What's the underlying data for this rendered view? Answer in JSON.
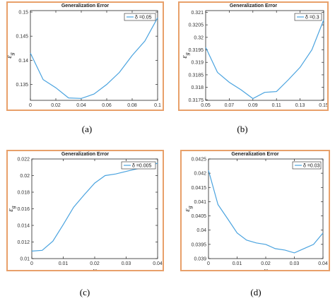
{
  "chart_data": [
    {
      "id": "a",
      "type": "line",
      "title": "Generalization Error",
      "caption": "(a)",
      "xlabel": "γ",
      "ylabel": "ε",
      "ylabel_sub": "g",
      "xlim": [
        0,
        0.1
      ],
      "ylim": [
        0.1317,
        0.1503
      ],
      "xticks": [
        0,
        0.02,
        0.04,
        0.06,
        0.08,
        0.1
      ],
      "xtick_labels": [
        "0",
        "0.02",
        "0.04",
        "0.06",
        "0.08",
        "0.1"
      ],
      "yticks": [
        0.135,
        0.14,
        0.145,
        0.15
      ],
      "ytick_labels": [
        "0.135",
        "0.14",
        "0.145",
        "0.15"
      ],
      "legend": "δ =0.05",
      "legend_position": "top-right",
      "color": "#4aa3df",
      "x": [
        0,
        0.01,
        0.02,
        0.03,
        0.04,
        0.05,
        0.06,
        0.07,
        0.08,
        0.09,
        0.1
      ],
      "y": [
        0.1415,
        0.136,
        0.1343,
        0.1322,
        0.1321,
        0.133,
        0.135,
        0.1375,
        0.141,
        0.144,
        0.1488
      ]
    },
    {
      "id": "b",
      "type": "line",
      "title": "Generalization Error",
      "caption": "(b)",
      "xlabel": "γ",
      "ylabel": "ε",
      "ylabel_sub": "g",
      "xlim": [
        0.05,
        0.15
      ],
      "ylim": [
        0.31748,
        0.32107
      ],
      "xticks": [
        0.05,
        0.07,
        0.09,
        0.11,
        0.13,
        0.15
      ],
      "xtick_labels": [
        "0.05",
        "0.07",
        "0.09",
        "0.11",
        "0.13",
        "0.15"
      ],
      "yticks": [
        0.3175,
        0.318,
        0.3185,
        0.319,
        0.3195,
        0.32,
        0.3205,
        0.321
      ],
      "ytick_labels": [
        "0.3175",
        "0.318",
        "0.3185",
        "0.319",
        "0.3195",
        "0.32",
        "0.3205",
        "0.321"
      ],
      "legend": "δ =0.3",
      "legend_position": "top-right",
      "color": "#4aa3df",
      "x": [
        0.05,
        0.06,
        0.07,
        0.08,
        0.09,
        0.1,
        0.11,
        0.12,
        0.13,
        0.14,
        0.15
      ],
      "y": [
        0.3196,
        0.3186,
        0.3182,
        0.3179,
        0.31755,
        0.3178,
        0.31783,
        0.3183,
        0.3188,
        0.3195,
        0.3207
      ]
    },
    {
      "id": "c",
      "type": "line",
      "title": "Generalization Error",
      "caption": "(c)",
      "xlabel": "γ",
      "ylabel": "ε",
      "ylabel_sub": "g",
      "xlim": [
        0,
        0.04
      ],
      "ylim": [
        0.01,
        0.022
      ],
      "xticks": [
        0,
        0.01,
        0.02,
        0.03,
        0.04
      ],
      "xtick_labels": [
        "0",
        "0.01",
        "0.02",
        "0.03",
        "0.04"
      ],
      "yticks": [
        0.01,
        0.012,
        0.014,
        0.016,
        0.018,
        0.02,
        0.022
      ],
      "ytick_labels": [
        "0.01",
        "0.012",
        "0.014",
        "0.016",
        "0.018",
        "0.02",
        "0.022"
      ],
      "legend": "δ =0.005",
      "legend_position": "top-right",
      "color": "#4aa3df",
      "x": [
        0,
        0.0033,
        0.0067,
        0.01,
        0.0133,
        0.0167,
        0.02,
        0.0233,
        0.0267,
        0.03,
        0.0333,
        0.0367,
        0.04
      ],
      "y": [
        0.0109,
        0.011,
        0.0121,
        0.0141,
        0.0162,
        0.0177,
        0.0191,
        0.02,
        0.0202,
        0.0205,
        0.0208,
        0.0211,
        0.0215
      ]
    },
    {
      "id": "d",
      "type": "line",
      "title": "Generalization Error",
      "caption": "(d)",
      "xlabel": "γ",
      "ylabel": "ε",
      "ylabel_sub": "g",
      "xlim": [
        0,
        0.04
      ],
      "ylim": [
        0.039,
        0.0425
      ],
      "xticks": [
        0,
        0.01,
        0.02,
        0.03,
        0.04
      ],
      "xtick_labels": [
        "0",
        "0.01",
        "0.02",
        "0.03",
        "0.04"
      ],
      "yticks": [
        0.039,
        0.0395,
        0.04,
        0.0405,
        0.041,
        0.0415,
        0.042,
        0.0425
      ],
      "ytick_labels": [
        "0.039",
        "0.0395",
        "0.04",
        "0.0405",
        "0.041",
        "0.0415",
        "0.042",
        "0.0425"
      ],
      "legend": "δ =0.03",
      "legend_position": "top-right",
      "color": "#4aa3df",
      "x": [
        0,
        0.0033,
        0.0067,
        0.01,
        0.0133,
        0.0167,
        0.02,
        0.0233,
        0.0267,
        0.03,
        0.0333,
        0.0367,
        0.04
      ],
      "y": [
        0.0421,
        0.0409,
        0.0404,
        0.0399,
        0.03965,
        0.03955,
        0.0395,
        0.03935,
        0.0393,
        0.0392,
        0.03935,
        0.0395,
        0.0399
      ]
    }
  ]
}
